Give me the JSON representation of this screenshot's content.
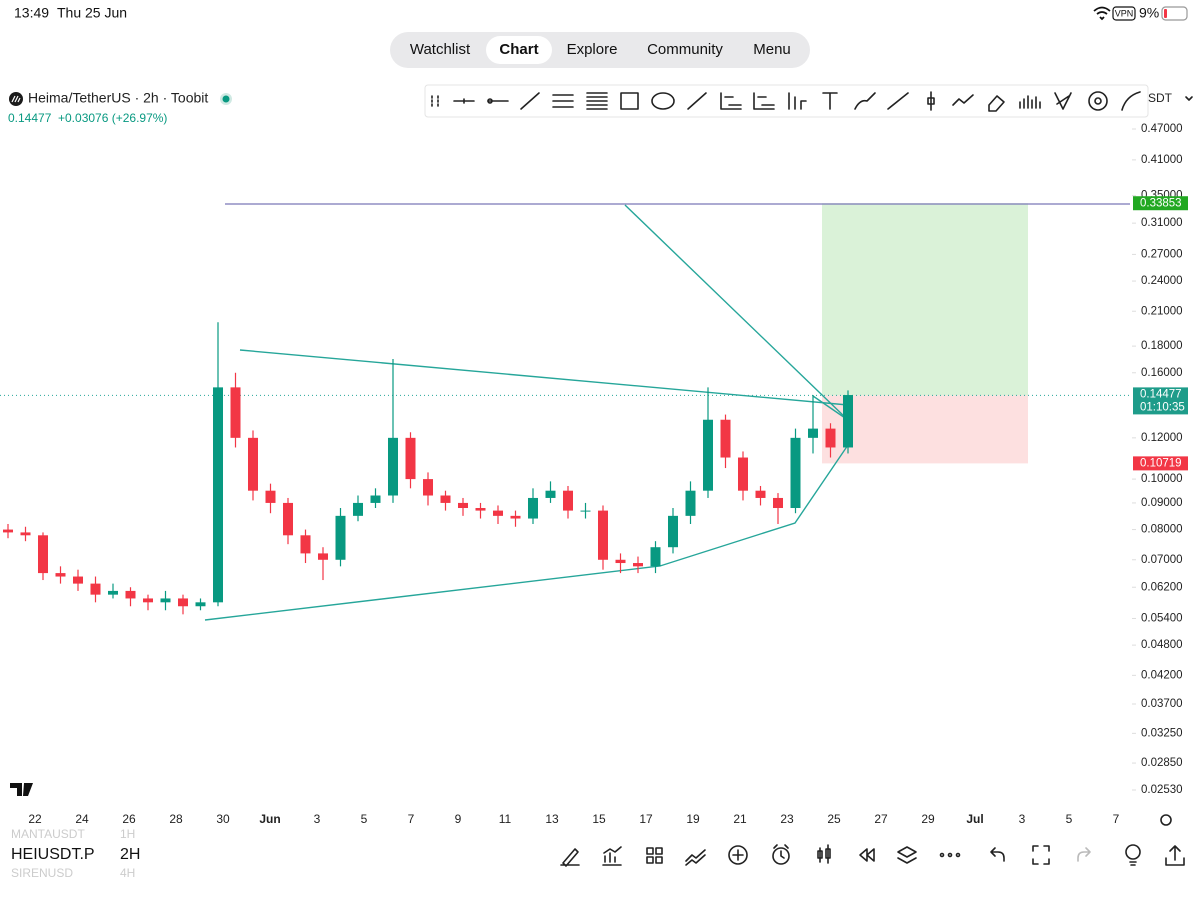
{
  "status_bar": {
    "time": "13:49",
    "date": "Thu 25 Jun",
    "vpn": "VPN",
    "battery": "9%"
  },
  "nav": {
    "tabs": [
      "Watchlist",
      "Chart",
      "Explore",
      "Community",
      "Menu"
    ],
    "active": 1
  },
  "symbol": {
    "name": "Heima/TetherUS · 2h · Toobit",
    "price": "0.14477",
    "change": "+0.03076 (+26.97%)"
  },
  "quote_selector": "SDT",
  "chart_data": {
    "type": "candlestick",
    "log_scale": true,
    "up_color": "#089981",
    "down_color": "#f23645",
    "open": [
      0.08,
      0.079,
      0.078,
      0.066,
      0.065,
      0.063,
      0.06,
      0.061,
      0.059,
      0.058,
      0.059,
      0.057,
      0.058,
      0.15,
      0.12,
      0.095,
      0.09,
      0.078,
      0.072,
      0.07,
      0.085,
      0.09,
      0.093,
      0.12,
      0.1,
      0.093,
      0.09,
      0.088,
      0.087,
      0.085,
      0.084,
      0.092,
      0.095,
      0.087,
      0.087,
      0.07,
      0.069,
      0.068,
      0.074,
      0.085,
      0.095,
      0.13,
      0.11,
      0.095,
      0.092,
      0.088,
      0.12,
      0.125,
      0.115
    ],
    "high": [
      0.082,
      0.081,
      0.079,
      0.068,
      0.067,
      0.065,
      0.063,
      0.062,
      0.06,
      0.061,
      0.06,
      0.059,
      0.2,
      0.16,
      0.124,
      0.098,
      0.092,
      0.08,
      0.074,
      0.088,
      0.093,
      0.096,
      0.17,
      0.123,
      0.103,
      0.095,
      0.092,
      0.09,
      0.089,
      0.087,
      0.096,
      0.099,
      0.097,
      0.09,
      0.089,
      0.072,
      0.071,
      0.076,
      0.088,
      0.099,
      0.15,
      0.133,
      0.113,
      0.097,
      0.094,
      0.125,
      0.145,
      0.128,
      0.148
    ],
    "low": [
      0.077,
      0.076,
      0.064,
      0.063,
      0.061,
      0.058,
      0.059,
      0.057,
      0.056,
      0.056,
      0.055,
      0.056,
      0.057,
      0.115,
      0.091,
      0.086,
      0.075,
      0.069,
      0.064,
      0.068,
      0.083,
      0.088,
      0.09,
      0.096,
      0.089,
      0.087,
      0.085,
      0.084,
      0.082,
      0.081,
      0.082,
      0.09,
      0.084,
      0.084,
      0.067,
      0.066,
      0.066,
      0.066,
      0.072,
      0.082,
      0.092,
      0.105,
      0.091,
      0.089,
      0.082,
      0.086,
      0.112,
      0.11,
      0.112
    ],
    "close": [
      0.079,
      0.078,
      0.066,
      0.065,
      0.063,
      0.06,
      0.061,
      0.059,
      0.058,
      0.059,
      0.057,
      0.058,
      0.15,
      0.12,
      0.095,
      0.09,
      0.078,
      0.072,
      0.07,
      0.085,
      0.09,
      0.093,
      0.12,
      0.1,
      0.093,
      0.09,
      0.088,
      0.087,
      0.085,
      0.084,
      0.092,
      0.095,
      0.087,
      0.087,
      0.07,
      0.069,
      0.068,
      0.074,
      0.085,
      0.095,
      0.13,
      0.11,
      0.095,
      0.092,
      0.088,
      0.12,
      0.125,
      0.115,
      0.145
    ],
    "ylim": [
      0.0253,
      0.47
    ],
    "yticks": [
      {
        "value": 0.47,
        "label": "0.47000"
      },
      {
        "value": 0.41,
        "label": "0.41000"
      },
      {
        "value": 0.35,
        "label": "0.35000"
      },
      {
        "value": 0.31,
        "label": "0.31000"
      },
      {
        "value": 0.27,
        "label": "0.27000"
      },
      {
        "value": 0.24,
        "label": "0.24000"
      },
      {
        "value": 0.21,
        "label": "0.21000"
      },
      {
        "value": 0.18,
        "label": "0.18000"
      },
      {
        "value": 0.16,
        "label": "0.16000"
      },
      {
        "value": 0.12,
        "label": "0.12000"
      },
      {
        "value": 0.1,
        "label": "0.10000"
      },
      {
        "value": 0.09,
        "label": "0.09000"
      },
      {
        "value": 0.08,
        "label": "0.08000"
      },
      {
        "value": 0.07,
        "label": "0.07000"
      },
      {
        "value": 0.062,
        "label": "0.06200"
      },
      {
        "value": 0.054,
        "label": "0.05400"
      },
      {
        "value": 0.048,
        "label": "0.04800"
      },
      {
        "value": 0.042,
        "label": "0.04200"
      },
      {
        "value": 0.037,
        "label": "0.03700"
      },
      {
        "value": 0.0325,
        "label": "0.03250"
      },
      {
        "value": 0.0285,
        "label": "0.02850"
      },
      {
        "value": 0.0253,
        "label": "0.02530"
      }
    ],
    "x_labels": [
      "22",
      "24",
      "26",
      "28",
      "30",
      "Jun",
      "3",
      "5",
      "7",
      "9",
      "11",
      "13",
      "15",
      "17",
      "19",
      "21",
      "23",
      "25",
      "27",
      "29",
      "Jul",
      "3",
      "5",
      "7"
    ],
    "last_price": 0.14477,
    "countdown": "01:10:35",
    "position": {
      "target": 0.33853,
      "entry": 0.14477,
      "stop": 0.10719
    }
  },
  "bottom_bar": {
    "symbol": "HEIUSDT.P",
    "interval": "2H",
    "prev_symbol": "MANTAUSDT",
    "prev_interval": "1H",
    "next_symbol": "SIRENUSD",
    "next_interval": "4H"
  }
}
